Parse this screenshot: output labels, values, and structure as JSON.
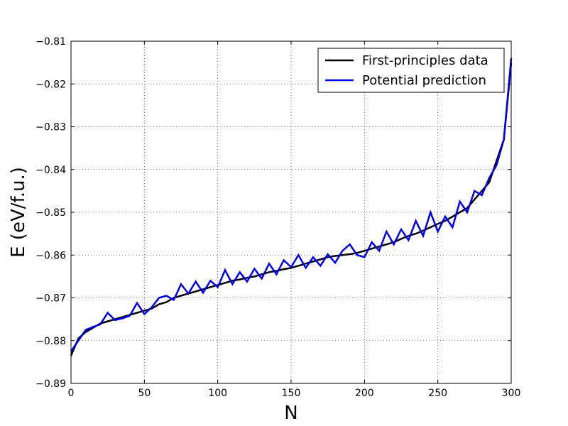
{
  "chart_data": {
    "type": "line",
    "xlabel": "N",
    "ylabel": "E (eV/f.u.)",
    "x": [
      0,
      5,
      10,
      15,
      20,
      25,
      30,
      35,
      40,
      45,
      50,
      55,
      60,
      65,
      70,
      75,
      80,
      85,
      90,
      95,
      100,
      105,
      110,
      115,
      120,
      125,
      130,
      135,
      140,
      145,
      150,
      155,
      160,
      165,
      170,
      175,
      180,
      185,
      190,
      195,
      200,
      205,
      210,
      215,
      220,
      225,
      230,
      235,
      240,
      245,
      250,
      255,
      260,
      265,
      270,
      275,
      280,
      285,
      290,
      295,
      300
    ],
    "series": [
      {
        "name": "First-principles data",
        "color": "#000000",
        "values": [
          -0.8835,
          -0.8795,
          -0.878,
          -0.877,
          -0.876,
          -0.8755,
          -0.875,
          -0.8745,
          -0.874,
          -0.8735,
          -0.873,
          -0.8725,
          -0.8715,
          -0.871,
          -0.87,
          -0.8695,
          -0.869,
          -0.8685,
          -0.868,
          -0.8675,
          -0.867,
          -0.8665,
          -0.866,
          -0.8657,
          -0.8653,
          -0.865,
          -0.8645,
          -0.864,
          -0.8637,
          -0.8633,
          -0.863,
          -0.8625,
          -0.862,
          -0.8615,
          -0.861,
          -0.8605,
          -0.8602,
          -0.86,
          -0.8598,
          -0.8595,
          -0.859,
          -0.8585,
          -0.858,
          -0.8575,
          -0.857,
          -0.8562,
          -0.8555,
          -0.855,
          -0.8543,
          -0.8535,
          -0.8527,
          -0.852,
          -0.851,
          -0.85,
          -0.849,
          -0.847,
          -0.845,
          -0.843,
          -0.838,
          -0.833,
          -0.815
        ]
      },
      {
        "name": "Potential prediction",
        "color": "#0000ee",
        "values": [
          -0.8825,
          -0.88,
          -0.8775,
          -0.8768,
          -0.8762,
          -0.8735,
          -0.8752,
          -0.8748,
          -0.8742,
          -0.8712,
          -0.8738,
          -0.8722,
          -0.87,
          -0.8695,
          -0.8705,
          -0.8668,
          -0.869,
          -0.8662,
          -0.8688,
          -0.866,
          -0.8675,
          -0.8635,
          -0.8668,
          -0.864,
          -0.8662,
          -0.8632,
          -0.8655,
          -0.862,
          -0.8645,
          -0.8612,
          -0.8628,
          -0.86,
          -0.863,
          -0.8605,
          -0.8625,
          -0.8598,
          -0.8618,
          -0.859,
          -0.8575,
          -0.86,
          -0.8605,
          -0.857,
          -0.859,
          -0.8545,
          -0.8575,
          -0.854,
          -0.8565,
          -0.852,
          -0.8555,
          -0.85,
          -0.8545,
          -0.851,
          -0.8535,
          -0.8475,
          -0.85,
          -0.845,
          -0.846,
          -0.842,
          -0.839,
          -0.833,
          -0.814
        ]
      }
    ],
    "xlim": [
      0,
      300
    ],
    "xticks": [
      0,
      50,
      100,
      150,
      200,
      250,
      300
    ],
    "ylim": [
      -0.89,
      -0.81
    ],
    "yticks": [
      {
        "value": -0.89,
        "label": "−0.89"
      },
      {
        "value": -0.88,
        "label": "−0.88"
      },
      {
        "value": -0.87,
        "label": "−0.87"
      },
      {
        "value": -0.86,
        "label": "−0.86"
      },
      {
        "value": -0.85,
        "label": "−0.85"
      },
      {
        "value": -0.84,
        "label": "−0.84"
      },
      {
        "value": -0.83,
        "label": "−0.83"
      },
      {
        "value": -0.82,
        "label": "−0.82"
      },
      {
        "value": -0.81,
        "label": "−0.81"
      }
    ],
    "grid": true,
    "legend": "upper right"
  }
}
